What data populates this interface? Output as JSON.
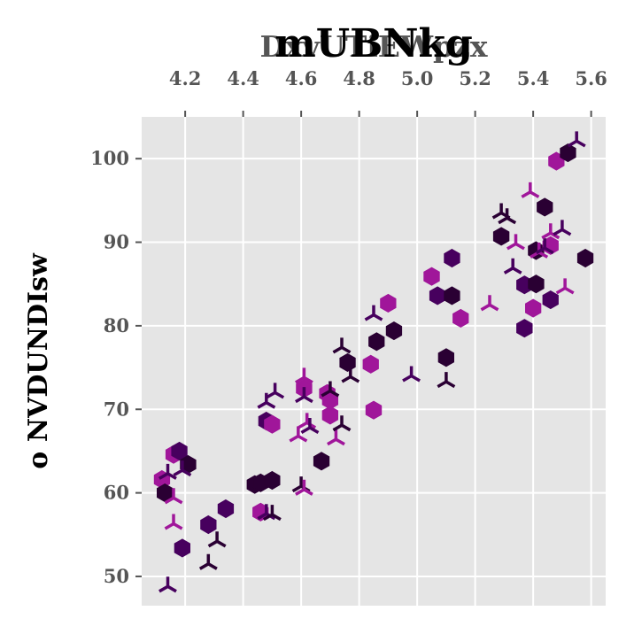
{
  "chart_data": {
    "type": "scatter",
    "title": "mUBNkg",
    "xlabel": "DxvUTiEWpzx",
    "ylabel": "o NVDUNDIsw",
    "xlim": [
      4.05,
      5.65
    ],
    "ylim": [
      46.5,
      105
    ],
    "x_ticks": [
      "4.2",
      "4.4",
      "4.6",
      "4.8",
      "5.0",
      "5.2",
      "5.4",
      "5.6"
    ],
    "y_ticks": [
      "50",
      "60",
      "70",
      "80",
      "90",
      "100"
    ],
    "x_axis_position": "top",
    "grid": true,
    "background": "#e5e5e5",
    "colors": [
      "#2a0033",
      "#47005e",
      "#a0169a"
    ],
    "series": [
      {
        "marker": "hexagon",
        "points": [
          [
            4.12,
            61.6,
            2
          ],
          [
            4.16,
            64.6,
            2
          ],
          [
            4.18,
            65.0,
            1
          ],
          [
            4.21,
            63.4,
            0
          ],
          [
            4.13,
            60.0,
            0
          ],
          [
            4.19,
            53.4,
            1
          ],
          [
            4.28,
            56.2,
            1
          ],
          [
            4.34,
            58.1,
            1
          ],
          [
            4.44,
            61.0,
            0
          ],
          [
            4.46,
            61.2,
            0
          ],
          [
            4.5,
            61.5,
            0
          ],
          [
            4.46,
            57.7,
            2
          ],
          [
            4.48,
            68.6,
            1
          ],
          [
            4.5,
            68.2,
            2
          ],
          [
            4.61,
            72.5,
            2
          ],
          [
            4.67,
            63.8,
            0
          ],
          [
            4.69,
            71.9,
            2
          ],
          [
            4.7,
            71.1,
            2
          ],
          [
            4.7,
            69.3,
            2
          ],
          [
            4.76,
            75.6,
            0
          ],
          [
            4.84,
            75.4,
            2
          ],
          [
            4.86,
            78.1,
            0
          ],
          [
            4.9,
            82.7,
            2
          ],
          [
            4.92,
            79.4,
            0
          ],
          [
            4.85,
            69.9,
            2
          ],
          [
            5.05,
            85.9,
            2
          ],
          [
            5.07,
            83.6,
            1
          ],
          [
            5.1,
            76.2,
            0
          ],
          [
            5.12,
            83.6,
            0
          ],
          [
            5.12,
            88.1,
            1
          ],
          [
            5.15,
            80.9,
            2
          ],
          [
            5.29,
            90.7,
            0
          ],
          [
            5.37,
            84.9,
            1
          ],
          [
            5.37,
            79.7,
            1
          ],
          [
            5.4,
            82.1,
            2
          ],
          [
            5.41,
            85.0,
            0
          ],
          [
            5.41,
            89.0,
            0
          ],
          [
            5.44,
            94.2,
            0
          ],
          [
            5.46,
            89.6,
            2
          ],
          [
            5.46,
            83.1,
            1
          ],
          [
            5.48,
            99.7,
            2
          ],
          [
            5.52,
            100.7,
            0
          ],
          [
            5.58,
            88.1,
            0
          ]
        ]
      },
      {
        "marker": "tri",
        "points": [
          [
            4.14,
            48.8,
            1
          ],
          [
            4.14,
            62.3,
            1
          ],
          [
            4.16,
            59.4,
            2
          ],
          [
            4.16,
            56.3,
            2
          ],
          [
            4.19,
            62.7,
            1
          ],
          [
            4.28,
            51.5,
            0
          ],
          [
            4.31,
            54.2,
            0
          ],
          [
            4.48,
            57.5,
            1
          ],
          [
            4.5,
            57.4,
            0
          ],
          [
            4.48,
            70.8,
            1
          ],
          [
            4.51,
            72.0,
            1
          ],
          [
            4.59,
            66.8,
            2
          ],
          [
            4.6,
            60.8,
            0
          ],
          [
            4.61,
            60.4,
            2
          ],
          [
            4.61,
            73.8,
            2
          ],
          [
            4.61,
            71.5,
            1
          ],
          [
            4.62,
            68.4,
            2
          ],
          [
            4.63,
            67.8,
            1
          ],
          [
            4.7,
            72.2,
            0
          ],
          [
            4.72,
            66.4,
            2
          ],
          [
            4.74,
            77.4,
            0
          ],
          [
            4.74,
            68.1,
            0
          ],
          [
            4.77,
            73.9,
            0
          ],
          [
            4.85,
            81.3,
            1
          ],
          [
            4.98,
            74.0,
            1
          ],
          [
            5.1,
            73.3,
            0
          ],
          [
            5.25,
            82.5,
            2
          ],
          [
            5.29,
            93.5,
            0
          ],
          [
            5.31,
            92.9,
            0
          ],
          [
            5.33,
            86.9,
            1
          ],
          [
            5.34,
            89.8,
            2
          ],
          [
            5.39,
            96.0,
            2
          ],
          [
            5.42,
            88.8,
            2
          ],
          [
            5.44,
            89.3,
            1
          ],
          [
            5.46,
            91.1,
            2
          ],
          [
            5.5,
            91.5,
            1
          ],
          [
            5.51,
            84.5,
            2
          ],
          [
            5.55,
            102.1,
            1
          ]
        ]
      }
    ]
  }
}
